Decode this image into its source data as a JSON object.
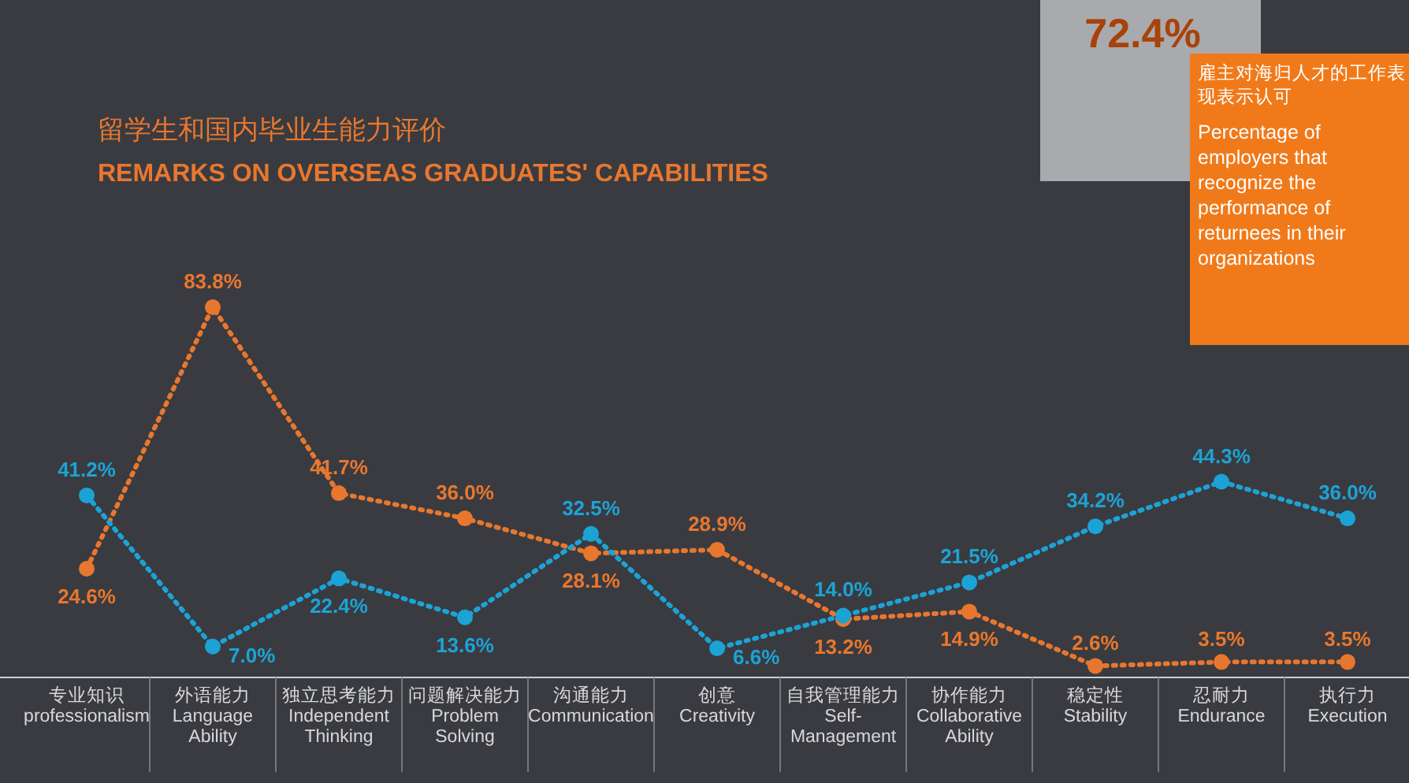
{
  "chart_data": {
    "type": "line",
    "title": "留学生和国内毕业生能力评价",
    "subtitle": "REMARKS ON OVERSEAS GRADUATES' CAPABILITIES",
    "categories": [
      "专业知识\nprofessionalism",
      "外语能力\nLanguage\nAbility",
      "独立思考能力\nIndependent\nThinking",
      "问题解决能力\nProblem\nSolving",
      "沟通能力\nCommunication",
      "创意\nCreativity",
      "自我管理能力\nSelf-\nManagement",
      "协作能力\nCollaborative\nAbility",
      "稳定性\nStability",
      "忍耐力\nEndurance",
      "执行力\nExecution"
    ],
    "series": [
      {
        "color": "#e8772e",
        "values": [
          24.6,
          83.8,
          41.7,
          36.0,
          28.1,
          28.9,
          13.2,
          14.9,
          2.6,
          3.5,
          3.5
        ],
        "value_labels": [
          "24.6%",
          "83.8%",
          "41.7%",
          "36.0%",
          "28.1%",
          "28.9%",
          "13.2%",
          "14.9%",
          "2.6%",
          "3.5%",
          "3.5%"
        ]
      },
      {
        "color": "#1ca3d6",
        "values": [
          41.2,
          7.0,
          22.4,
          13.6,
          32.5,
          6.6,
          14.0,
          21.5,
          34.2,
          44.3,
          36.0
        ],
        "value_labels": [
          "41.2%",
          "7.0%",
          "22.4%",
          "13.6%",
          "32.5%",
          "6.6%",
          "14.0%",
          "21.5%",
          "34.2%",
          "44.3%",
          "36.0%"
        ]
      }
    ],
    "marker": "circle",
    "line_style": "dotted",
    "annotations": [
      "72.4%",
      "雇主对海归人才的工作表现表示认可",
      "Percentage of employers that recognize the performance of returnees in their organizations"
    ]
  }
}
